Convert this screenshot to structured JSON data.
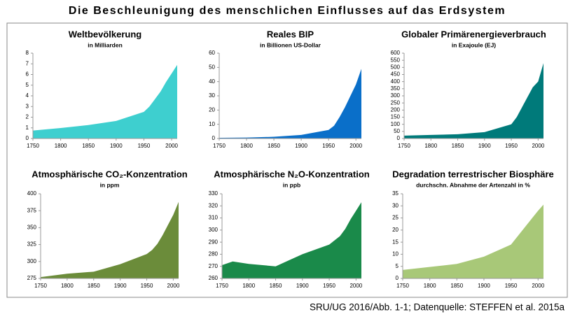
{
  "title": "Die Beschleunigung des menschlichen Einflusses auf das Erdsystem",
  "source": "SRU/UG 2016/Abb. 1-1; Datenquelle: STEFFEN et al. 2015a",
  "chart_data": [
    {
      "type": "area",
      "title": "Weltbevölkerung",
      "subtitle": "in Milliarden",
      "color": "#3ecfcf",
      "x": [
        1750,
        1800,
        1850,
        1900,
        1950,
        1960,
        1970,
        1980,
        1990,
        2000,
        2010
      ],
      "values": [
        0.75,
        0.98,
        1.26,
        1.65,
        2.5,
        3.0,
        3.7,
        4.4,
        5.3,
        6.1,
        6.9
      ],
      "xlim": [
        1750,
        2010
      ],
      "ylim": [
        0,
        8
      ],
      "xticks": [
        1750,
        1800,
        1850,
        1900,
        1950,
        2000
      ],
      "yticks": [
        0,
        1,
        2,
        3,
        4,
        5,
        6,
        7,
        8
      ]
    },
    {
      "type": "area",
      "title": "Reales BIP",
      "subtitle": "in Billionen US-Dollar",
      "color": "#0a6fc9",
      "x": [
        1750,
        1800,
        1850,
        1900,
        1950,
        1960,
        1970,
        1980,
        1990,
        2000,
        2010
      ],
      "values": [
        0.5,
        0.7,
        1.2,
        2.5,
        6,
        9,
        15,
        22,
        30,
        38,
        49
      ],
      "xlim": [
        1750,
        2010
      ],
      "ylim": [
        0,
        60
      ],
      "xticks": [
        1750,
        1800,
        1850,
        1900,
        1950,
        2000
      ],
      "yticks": [
        0,
        10,
        20,
        30,
        40,
        50,
        60
      ]
    },
    {
      "type": "area",
      "title": "Globaler Primärenergieverbrauch",
      "subtitle": "in Exajoule (EJ)",
      "color": "#007a7a",
      "x": [
        1750,
        1800,
        1850,
        1900,
        1950,
        1960,
        1970,
        1980,
        1990,
        2000,
        2010
      ],
      "values": [
        20,
        25,
        30,
        45,
        100,
        150,
        220,
        290,
        360,
        400,
        530
      ],
      "xlim": [
        1750,
        2010
      ],
      "ylim": [
        0,
        600
      ],
      "xticks": [
        1750,
        1800,
        1850,
        1900,
        1950,
        2000
      ],
      "yticks": [
        0,
        50,
        100,
        150,
        200,
        250,
        300,
        350,
        400,
        450,
        500,
        550,
        600
      ]
    },
    {
      "type": "area",
      "title": "Atmosphärische CO₂-Konzentration",
      "subtitle": "in ppm",
      "color": "#6b8c3a",
      "x": [
        1750,
        1800,
        1850,
        1900,
        1950,
        1960,
        1970,
        1980,
        1990,
        2000,
        2010
      ],
      "values": [
        277,
        282,
        285,
        296,
        311,
        317,
        326,
        339,
        354,
        369,
        388
      ],
      "xlim": [
        1750,
        2010
      ],
      "ylim": [
        275,
        400
      ],
      "xticks": [
        1750,
        1800,
        1850,
        1900,
        1950,
        2000
      ],
      "yticks": [
        275,
        300,
        325,
        350,
        375,
        400
      ]
    },
    {
      "type": "area",
      "title": "Atmosphärische N₂O-Konzentration",
      "subtitle": "in ppb",
      "color": "#1a8a4a",
      "x": [
        1750,
        1770,
        1800,
        1850,
        1870,
        1900,
        1950,
        1970,
        1980,
        1990,
        2000,
        2010
      ],
      "values": [
        271,
        274,
        272,
        270,
        274,
        280,
        288,
        295,
        301,
        309,
        316,
        323
      ],
      "xlim": [
        1750,
        2010
      ],
      "ylim": [
        260,
        330
      ],
      "xticks": [
        1750,
        1800,
        1850,
        1900,
        1950,
        2000
      ],
      "yticks": [
        260,
        270,
        280,
        290,
        300,
        310,
        320,
        330
      ]
    },
    {
      "type": "area",
      "title": "Degradation terrestrischer Biosphäre",
      "subtitle": "durchschn. Abnahme der Artenzahl in %",
      "color": "#a8c878",
      "x": [
        1750,
        1850,
        1900,
        1950,
        2000,
        2010
      ],
      "values": [
        3.5,
        6,
        9,
        14,
        28,
        30.5
      ],
      "xlim": [
        1750,
        2010
      ],
      "ylim": [
        0,
        35
      ],
      "xticks": [
        1750,
        1800,
        1850,
        1900,
        1950,
        2000
      ],
      "yticks": [
        0,
        5,
        10,
        15,
        20,
        25,
        30,
        35
      ]
    }
  ]
}
